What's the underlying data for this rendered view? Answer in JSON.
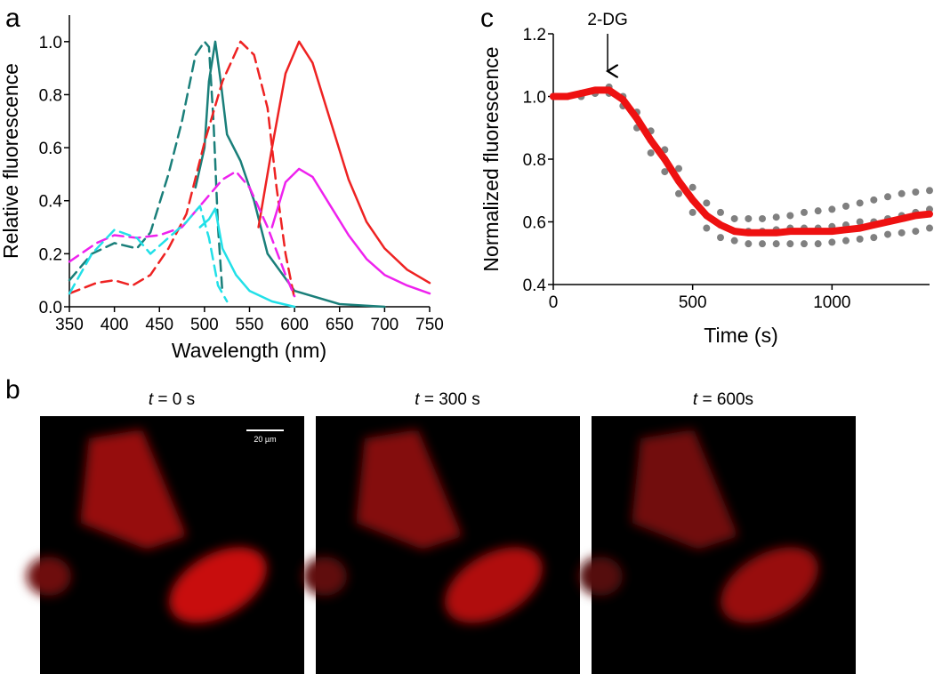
{
  "panels": {
    "a": "a",
    "b": "b",
    "c": "c"
  },
  "chart_data": [
    {
      "type": "line",
      "xlabel": "Wavelength (nm)",
      "ylabel": "Relative fluorescence",
      "xlim": [
        350,
        750
      ],
      "xticks": [
        350,
        400,
        450,
        500,
        550,
        600,
        650,
        700,
        750
      ],
      "ylim": [
        0,
        1.1
      ],
      "yticks": [
        {
          "value": 0,
          "label": "0.0"
        },
        0.2,
        0.4,
        0.6,
        0.8,
        {
          "value": 1,
          "label": "1.0"
        }
      ],
      "series": [
        {
          "color": "#1a7f7a",
          "dash": true,
          "x": [
            350,
            375,
            400,
            425,
            440,
            460,
            475,
            490,
            500,
            505,
            510,
            515,
            520
          ],
          "values": [
            0.1,
            0.2,
            0.24,
            0.22,
            0.28,
            0.5,
            0.7,
            0.95,
            1.0,
            0.98,
            0.7,
            0.3,
            0.05
          ]
        },
        {
          "color": "#1a7f7a",
          "dash": false,
          "x": [
            490,
            500,
            505,
            512,
            518,
            525,
            540,
            555,
            570,
            600,
            650,
            700
          ],
          "values": [
            0.45,
            0.6,
            0.85,
            1.0,
            0.85,
            0.65,
            0.55,
            0.4,
            0.2,
            0.06,
            0.01,
            0.0
          ]
        },
        {
          "color": "#ee2222",
          "dash": true,
          "x": [
            350,
            380,
            400,
            420,
            440,
            460,
            480,
            500,
            520,
            540,
            555,
            570,
            580,
            590,
            600
          ],
          "values": [
            0.05,
            0.09,
            0.1,
            0.08,
            0.12,
            0.22,
            0.35,
            0.62,
            0.85,
            1.0,
            0.95,
            0.75,
            0.45,
            0.2,
            0.03
          ]
        },
        {
          "color": "#ee2222",
          "dash": false,
          "x": [
            560,
            575,
            590,
            605,
            620,
            640,
            660,
            680,
            700,
            725,
            750
          ],
          "values": [
            0.3,
            0.6,
            0.88,
            1.0,
            0.92,
            0.7,
            0.48,
            0.32,
            0.22,
            0.14,
            0.09
          ]
        },
        {
          "color": "#ee22ee",
          "dash": true,
          "x": [
            350,
            380,
            400,
            425,
            450,
            475,
            500,
            520,
            535,
            550,
            570,
            590,
            600
          ],
          "values": [
            0.17,
            0.24,
            0.27,
            0.26,
            0.27,
            0.3,
            0.4,
            0.48,
            0.51,
            0.45,
            0.3,
            0.12,
            0.04
          ]
        },
        {
          "color": "#ee22ee",
          "dash": false,
          "x": [
            575,
            590,
            605,
            620,
            640,
            660,
            680,
            700,
            725,
            750
          ],
          "values": [
            0.3,
            0.47,
            0.52,
            0.49,
            0.38,
            0.27,
            0.18,
            0.12,
            0.08,
            0.05
          ]
        },
        {
          "color": "#22e0e8",
          "dash": true,
          "x": [
            350,
            375,
            400,
            425,
            440,
            460,
            480,
            495,
            505,
            515,
            525
          ],
          "values": [
            0.05,
            0.2,
            0.29,
            0.26,
            0.2,
            0.26,
            0.32,
            0.38,
            0.26,
            0.08,
            0.02
          ]
        },
        {
          "color": "#22e0e8",
          "dash": false,
          "x": [
            495,
            505,
            512,
            520,
            535,
            550,
            575,
            600
          ],
          "values": [
            0.3,
            0.33,
            0.37,
            0.22,
            0.12,
            0.06,
            0.02,
            0.0
          ]
        }
      ]
    },
    {
      "type": "line",
      "xlabel": "Time (s)",
      "ylabel": "Normalized fluorescence",
      "annotation": {
        "text": "2-DG",
        "x": 195
      },
      "xlim": [
        0,
        1350
      ],
      "xticks": [
        0,
        500,
        1000
      ],
      "ylim": [
        0.4,
        1.2
      ],
      "yticks": [
        0.4,
        0.6,
        0.8,
        {
          "value": 1,
          "label": "1.0"
        },
        1.2
      ],
      "x": [
        0,
        50,
        100,
        150,
        200,
        250,
        300,
        350,
        400,
        450,
        500,
        550,
        600,
        650,
        700,
        750,
        800,
        850,
        900,
        950,
        1000,
        1050,
        1100,
        1150,
        1200,
        1250,
        1300,
        1350
      ],
      "series": [
        {
          "color": "#808080",
          "mode": "markers",
          "values": [
            1.0,
            1.0,
            1.01,
            1.02,
            1.03,
            1.0,
            0.95,
            0.89,
            0.83,
            0.77,
            0.71,
            0.66,
            0.63,
            0.61,
            0.61,
            0.61,
            0.615,
            0.62,
            0.63,
            0.635,
            0.64,
            0.65,
            0.66,
            0.67,
            0.68,
            0.69,
            0.695,
            0.7
          ]
        },
        {
          "color": "#808080",
          "mode": "markers",
          "values": [
            1.0,
            1.0,
            1.0,
            1.01,
            1.02,
            0.99,
            0.93,
            0.86,
            0.8,
            0.73,
            0.67,
            0.62,
            0.59,
            0.57,
            0.57,
            0.57,
            0.575,
            0.58,
            0.58,
            0.58,
            0.585,
            0.59,
            0.6,
            0.6,
            0.61,
            0.62,
            0.63,
            0.64
          ]
        },
        {
          "color": "#808080",
          "mode": "markers",
          "values": [
            1.0,
            1.0,
            1.0,
            1.01,
            1.01,
            0.97,
            0.9,
            0.82,
            0.76,
            0.69,
            0.63,
            0.58,
            0.55,
            0.54,
            0.53,
            0.53,
            0.53,
            0.53,
            0.53,
            0.53,
            0.535,
            0.54,
            0.545,
            0.55,
            0.56,
            0.565,
            0.57,
            0.58
          ]
        },
        {
          "color": "#ee1111",
          "mode": "line",
          "values": [
            1.0,
            1.0,
            1.01,
            1.02,
            1.02,
            0.99,
            0.93,
            0.86,
            0.8,
            0.73,
            0.67,
            0.62,
            0.59,
            0.57,
            0.565,
            0.565,
            0.565,
            0.57,
            0.57,
            0.57,
            0.57,
            0.575,
            0.58,
            0.59,
            0.6,
            0.61,
            0.62,
            0.625
          ]
        }
      ]
    }
  ],
  "images": {
    "captions": [
      {
        "var": "t",
        "rest": " = 0 s"
      },
      {
        "var": "t",
        "rest": " = 300 s"
      },
      {
        "var": "t",
        "rest": " = 600s"
      }
    ],
    "scale_bar": "20 µm"
  }
}
